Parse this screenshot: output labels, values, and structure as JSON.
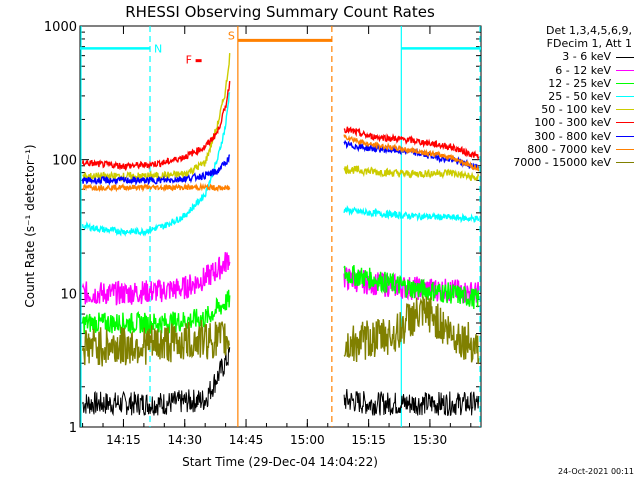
{
  "chart_data": {
    "type": "line",
    "title": "RHESSI Observing Summary Count Rates",
    "xlabel": "Start Time (29-Dec-04 14:04:22)",
    "ylabel": "Count Rate (s⁻¹ detector⁻¹)",
    "y_scale": "log",
    "ylim": [
      1,
      1000
    ],
    "xlim": [
      "14:04:22",
      "15:42:30"
    ],
    "x_tick_labels": [
      "14:15",
      "14:30",
      "14:45",
      "15:00",
      "15:15",
      "15:30"
    ],
    "y_tick_labels": [
      "1",
      "10",
      "100",
      "1000"
    ],
    "grid": false,
    "legend_position": "right",
    "legend_header": [
      "Det 1,3,4,5,6,9,",
      "FDecim 1, Att 1"
    ],
    "series": [
      {
        "name": "3 - 6 keV",
        "color": "#000000",
        "x": [
          "14:05",
          "14:15",
          "14:25",
          "14:35",
          "14:41",
          "15:09",
          "15:15",
          "15:25",
          "15:35",
          "15:42"
        ],
        "values": [
          1.5,
          1.5,
          1.5,
          1.6,
          3.5,
          1.6,
          1.5,
          1.5,
          1.5,
          1.5
        ]
      },
      {
        "name": "6 - 12 keV",
        "color": "#ff00ff",
        "x": [
          "14:05",
          "14:15",
          "14:25",
          "14:30",
          "14:35",
          "14:38",
          "14:40",
          "14:41",
          "15:09",
          "15:15",
          "15:25",
          "15:35",
          "15:42"
        ],
        "values": [
          10,
          10,
          10.5,
          11,
          13,
          15,
          17,
          19,
          13,
          12,
          11,
          10.5,
          10
        ]
      },
      {
        "name": "12 - 25 keV",
        "color": "#00ff00",
        "x": [
          "14:05",
          "14:15",
          "14:25",
          "14:35",
          "14:41",
          "15:09",
          "15:15",
          "15:25",
          "15:35",
          "15:42"
        ],
        "values": [
          6,
          6,
          6,
          6.5,
          9,
          14,
          13,
          11,
          10,
          9
        ]
      },
      {
        "name": "25 - 50 keV",
        "color": "#00ffff",
        "x": [
          "14:05",
          "14:10",
          "14:15",
          "14:20",
          "14:25",
          "14:30",
          "14:35",
          "14:38",
          "14:40",
          "14:41",
          "15:09",
          "15:15",
          "15:25",
          "15:35",
          "15:42"
        ],
        "values": [
          32,
          30,
          29,
          29,
          32,
          38,
          55,
          100,
          180,
          330,
          42,
          40,
          38,
          37,
          36
        ]
      },
      {
        "name": "50 - 100 keV",
        "color": "#cccc00",
        "x": [
          "14:05",
          "14:15",
          "14:20",
          "14:25",
          "14:30",
          "14:35",
          "14:38",
          "14:40",
          "14:41",
          "15:09",
          "15:15",
          "15:25",
          "15:35",
          "15:42"
        ],
        "values": [
          75,
          75,
          75,
          76,
          78,
          95,
          180,
          330,
          600,
          85,
          82,
          78,
          80,
          72
        ]
      },
      {
        "name": "100 - 300 keV",
        "color": "#ff0000",
        "x": [
          "14:05",
          "14:10",
          "14:15",
          "14:20",
          "14:25",
          "14:30",
          "14:35",
          "14:38",
          "14:40",
          "14:41",
          "15:09",
          "15:15",
          "15:25",
          "15:35",
          "15:42"
        ],
        "values": [
          95,
          92,
          90,
          91,
          95,
          105,
          125,
          160,
          250,
          380,
          170,
          150,
          140,
          125,
          105
        ]
      },
      {
        "name": "300 - 800 keV",
        "color": "#0000ff",
        "x": [
          "14:05",
          "14:15",
          "14:25",
          "14:30",
          "14:35",
          "14:38",
          "14:40",
          "14:41",
          "15:09",
          "15:15",
          "15:25",
          "15:35",
          "15:42"
        ],
        "values": [
          70,
          70,
          70,
          72,
          76,
          82,
          95,
          105,
          130,
          122,
          115,
          100,
          88
        ]
      },
      {
        "name": "800 - 7000 keV",
        "color": "#ff8000",
        "x": [
          "14:05",
          "14:15",
          "14:25",
          "14:35",
          "14:41",
          "15:09",
          "15:15",
          "15:25",
          "15:35",
          "15:42"
        ],
        "values": [
          62,
          62,
          62,
          62,
          61,
          150,
          130,
          118,
          105,
          85
        ]
      },
      {
        "name": "7000 - 15000 keV",
        "color": "#808000",
        "x": [
          "14:05",
          "14:15",
          "14:25",
          "14:35",
          "14:41",
          "15:09",
          "15:15",
          "15:22",
          "15:25",
          "15:30",
          "15:35",
          "15:42"
        ],
        "values": [
          4,
          4,
          4.2,
          4.5,
          4.5,
          4,
          4.5,
          5,
          6.5,
          7,
          5,
          4
        ]
      }
    ],
    "annotations": [
      {
        "text": "N",
        "color": "#00ffff",
        "x_start": "14:04:22",
        "x_end": "14:21:30",
        "level": 680
      },
      {
        "text": "N",
        "color": "#00ffff",
        "x_start": "15:23:00",
        "x_end": "15:42:30",
        "level": 680
      },
      {
        "text": "F",
        "color": "#ff0000",
        "x": "14:40:00",
        "level": 560
      },
      {
        "text": "S",
        "color": "#ff8000",
        "x_start": "14:43:00",
        "x_end": "15:06:00",
        "level": 780
      }
    ]
  },
  "footer": {
    "timestamp": "24-Oct-2021 00:11"
  }
}
